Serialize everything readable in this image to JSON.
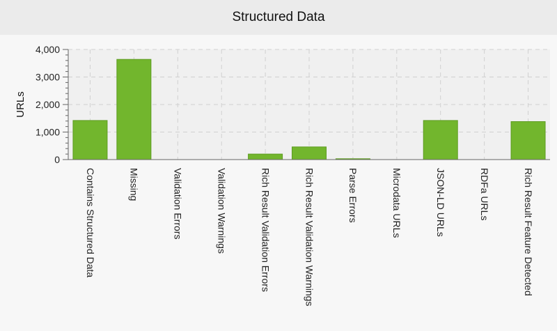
{
  "chart_data": {
    "type": "bar",
    "title": "Structured Data",
    "xlabel": "",
    "ylabel": "URLs",
    "ylim": [
      0,
      4000
    ],
    "yticks": [
      0,
      1000,
      2000,
      3000,
      4000
    ],
    "ytick_labels": [
      "0",
      "1,000",
      "2,000",
      "3,000",
      "4,000"
    ],
    "grid": true,
    "categories": [
      "Contains Structured Data",
      "Missing",
      "Validation Errors",
      "Validation Warnings",
      "Rich Result Validation Errors",
      "Rich Result Validation Warnings",
      "Parse Errors",
      "Microdata URLs",
      "JSON-LD URLs",
      "RDFa URLs",
      "Rich Result Feature Detected"
    ],
    "values": [
      1420,
      3640,
      0,
      0,
      200,
      460,
      30,
      0,
      1420,
      0,
      1380
    ],
    "bar_color": "#72b62d",
    "bar_edge_color": "#5e9c22"
  }
}
